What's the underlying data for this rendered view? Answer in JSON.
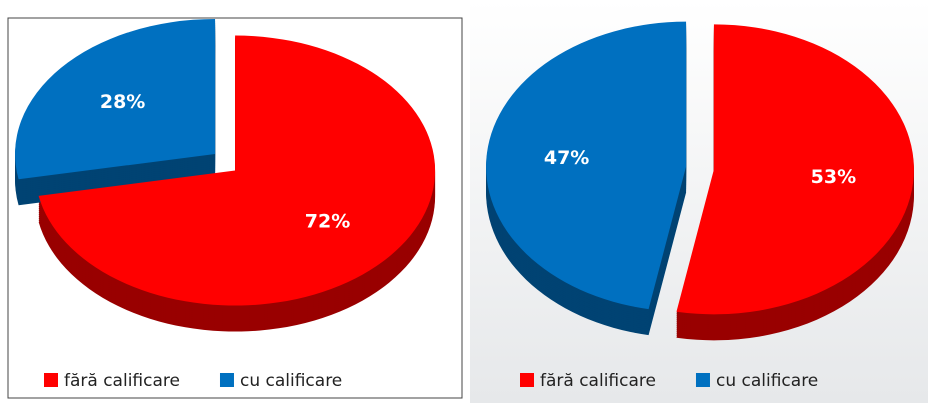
{
  "chart_data": [
    {
      "type": "pie",
      "categories": [
        "fără calificare",
        "cu calificare"
      ],
      "values": [
        72,
        28
      ],
      "value_labels": [
        "72%",
        "28%"
      ],
      "colors": [
        "#ff0000",
        "#0070c0"
      ]
    },
    {
      "type": "pie",
      "categories": [
        "fără calificare",
        "cu calificare"
      ],
      "values": [
        53,
        47
      ],
      "value_labels": [
        "53%",
        "47%"
      ],
      "colors": [
        "#ff0000",
        "#0070c0"
      ]
    }
  ]
}
